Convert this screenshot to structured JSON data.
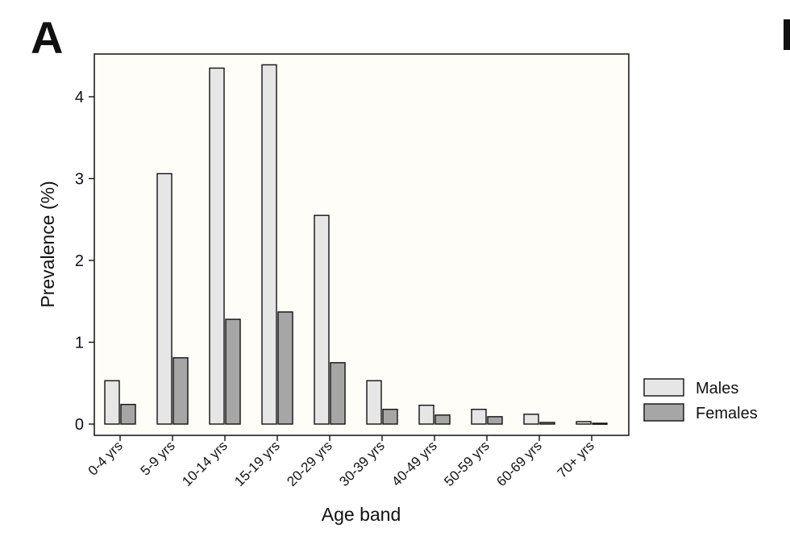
{
  "panel_label": "A",
  "chart_data": {
    "type": "bar",
    "title": "",
    "xlabel": "Age band",
    "ylabel": "Prevalence (%)",
    "ylim": [
      -0.12,
      4.5
    ],
    "yticks": [
      0,
      1,
      2,
      3,
      4
    ],
    "grid": false,
    "legend_position": "right-bottom",
    "categories": [
      "0-4 yrs",
      "5-9 yrs",
      "10-14 yrs",
      "15-19 yrs",
      "20-29 yrs",
      "30-39 yrs",
      "40-49 yrs",
      "50-59 yrs",
      "60-69 yrs",
      "70+ yrs"
    ],
    "series": [
      {
        "name": "Males",
        "color": "#e6e6e6",
        "values": [
          0.53,
          3.06,
          4.35,
          4.39,
          2.55,
          0.53,
          0.23,
          0.18,
          0.12,
          0.03
        ]
      },
      {
        "name": "Females",
        "color": "#a6a6a6",
        "values": [
          0.24,
          0.81,
          1.28,
          1.37,
          0.75,
          0.18,
          0.11,
          0.09,
          0.02,
          0.01
        ]
      }
    ],
    "plot_background": "#fffdf7"
  }
}
